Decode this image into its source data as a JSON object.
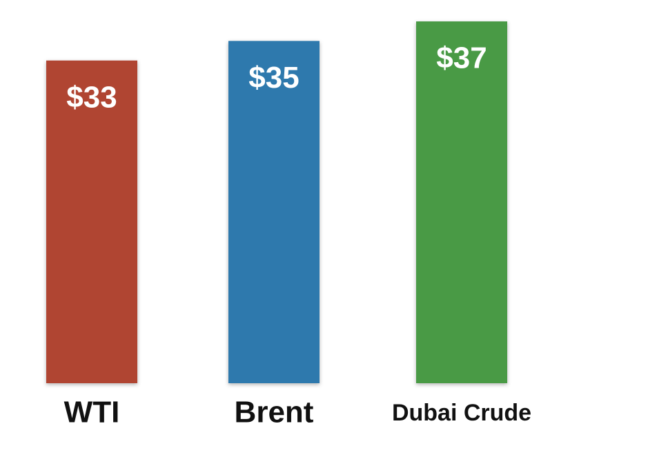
{
  "chart_data": {
    "type": "bar",
    "categories": [
      "WTI",
      "Brent",
      "Dubai Crude"
    ],
    "values": [
      33,
      35,
      37
    ],
    "value_labels": [
      "$33",
      "$35",
      "$37"
    ],
    "colors": [
      "#b04532",
      "#2f79ad",
      "#4a9a45"
    ]
  }
}
